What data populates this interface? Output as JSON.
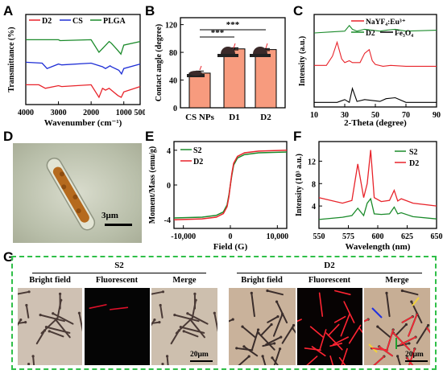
{
  "panel_labels": {
    "A": "A",
    "B": "B",
    "C": "C",
    "D": "D",
    "E": "E",
    "F": "F",
    "G": "G"
  },
  "colors": {
    "D2": "#e8232a",
    "CS": "#1f2fd6",
    "PLGA": "#1a8a2a",
    "S2": "#1a8a2a",
    "NaYF4": "#e8232a",
    "Fe3O4": "#000000",
    "bar": "#f79b7e",
    "dashbox": "#2fbf48"
  },
  "panelA": {
    "ylabel": "Transmittance (%)",
    "xlabel": "Wavenumber (cm⁻¹)",
    "xticks": [
      "4000",
      "3000",
      "2000",
      "1000",
      "500"
    ],
    "legend": [
      "D2",
      "CS",
      "PLGA"
    ]
  },
  "panelB": {
    "ylabel": "Contact angle (degree)",
    "yticks": [
      "0",
      "40",
      "80",
      "120"
    ],
    "sig1": "***",
    "sig2": "***"
  },
  "panelC": {
    "ylabel": "Intensity (a.u.)",
    "xlabel": "2-Theta (degree)",
    "xticks": [
      "10",
      "30",
      "50",
      "70",
      "90"
    ],
    "legend_nayf4": "NaYF₄:Eu³⁺",
    "legend_d2": "D2",
    "legend_fe3o4": "Fe₃O₄"
  },
  "panelD": {
    "scalebar": "3μm"
  },
  "panelE": {
    "ylabel": "Moment/Mass (emu/g)",
    "xlabel": "Field (G)",
    "yticks": [
      "4",
      "0",
      "-4"
    ],
    "xticks": [
      "-10,000",
      "0",
      "10,000"
    ],
    "legend": [
      "S2",
      "D2"
    ]
  },
  "panelF": {
    "ylabel": "Intensity (10³ a.u.)",
    "xlabel": "Wavelength (nm)",
    "yticks": [
      "4",
      "8",
      "12"
    ],
    "xticks": [
      "550",
      "575",
      "600",
      "625",
      "650"
    ],
    "legend": [
      "S2",
      "D2"
    ]
  },
  "panelG": {
    "group_s2": "S2",
    "group_d2": "D2",
    "captions": [
      "Bright field",
      "Fluorescent",
      "Merge",
      "Bright field",
      "Fluorescent",
      "Merge"
    ],
    "scalebar": "20μm"
  },
  "chart_data": [
    {
      "type": "line",
      "title": "",
      "xlabel": "Wavenumber (cm⁻¹)",
      "ylabel": "Transmittance (%)",
      "xlim": [
        4000,
        500
      ],
      "series": [
        {
          "name": "D2",
          "x": [
            4000,
            3600,
            3400,
            3000,
            2900,
            2000,
            1760,
            1650,
            1560,
            1450,
            1380,
            1180,
            1080,
            1000,
            500
          ],
          "y": [
            22,
            22,
            18,
            21,
            20,
            22,
            8,
            18,
            16,
            18,
            16,
            10,
            8,
            14,
            20
          ]
        },
        {
          "name": "CS",
          "x": [
            4000,
            3500,
            3350,
            3000,
            2900,
            2000,
            1650,
            1560,
            1420,
            1380,
            1150,
            1070,
            1000,
            500
          ],
          "y": [
            47,
            46,
            40,
            45,
            44,
            46,
            42,
            40,
            43,
            42,
            38,
            34,
            40,
            45
          ]
        },
        {
          "name": "PLGA",
          "x": [
            4000,
            3000,
            2950,
            2000,
            1760,
            1450,
            1380,
            1180,
            1090,
            1000,
            500
          ],
          "y": [
            72,
            72,
            71,
            72,
            58,
            70,
            68,
            60,
            56,
            66,
            70
          ]
        }
      ]
    },
    {
      "type": "bar",
      "title": "",
      "categories": [
        "CS NPs",
        "D1",
        "D2"
      ],
      "values": [
        50,
        85,
        84
      ],
      "errors": [
        3,
        1.5,
        1.5
      ],
      "ylabel": "Contact angle (degree)",
      "ylim": [
        0,
        130
      ]
    },
    {
      "type": "line",
      "title": "",
      "xlabel": "2-Theta (degree)",
      "ylabel": "Intensity (a.u.)",
      "xlim": [
        10,
        90
      ],
      "series": [
        {
          "name": "D2",
          "x": [
            10,
            20,
            30,
            33,
            35,
            38,
            43,
            53,
            57,
            63,
            70,
            90
          ],
          "y": [
            80,
            81,
            82,
            88,
            84,
            82,
            84,
            82,
            83,
            84,
            82,
            83
          ]
        },
        {
          "name": "NaYF₄:Eu³⁺",
          "x": [
            10,
            18,
            22,
            25,
            28,
            30,
            33,
            35,
            40,
            43,
            46,
            48,
            50,
            55,
            60,
            70,
            90
          ],
          "y": [
            45,
            45,
            55,
            70,
            52,
            48,
            50,
            48,
            48,
            58,
            62,
            50,
            46,
            44,
            45,
            44,
            44
          ]
        },
        {
          "name": "Fe₃O₄",
          "x": [
            10,
            25,
            30,
            33,
            35,
            38,
            43,
            53,
            57,
            63,
            70,
            90
          ],
          "y": [
            5,
            5,
            8,
            5,
            20,
            6,
            8,
            6,
            9,
            10,
            5,
            5
          ]
        }
      ]
    },
    {
      "type": "line",
      "title": "",
      "xlabel": "Field (G)",
      "ylabel": "Moment/Mass (emu/g)",
      "xlim": [
        -12000,
        12000
      ],
      "ylim": [
        -5,
        5
      ],
      "series": [
        {
          "name": "S2",
          "x": [
            -12000,
            -6000,
            -3000,
            -1500,
            -700,
            -300,
            0,
            300,
            700,
            1500,
            3000,
            6000,
            12000
          ],
          "y": [
            -3.8,
            -3.7,
            -3.5,
            -3.1,
            -2.3,
            -1.1,
            0,
            1.1,
            2.3,
            3.1,
            3.5,
            3.7,
            3.8
          ]
        },
        {
          "name": "D2",
          "x": [
            -12000,
            -6000,
            -3000,
            -1500,
            -700,
            -300,
            0,
            300,
            700,
            1500,
            3000,
            6000,
            12000
          ],
          "y": [
            -4.0,
            -3.9,
            -3.7,
            -3.3,
            -2.5,
            -1.3,
            0,
            1.3,
            2.5,
            3.3,
            3.7,
            3.9,
            4.0
          ]
        }
      ]
    },
    {
      "type": "line",
      "title": "",
      "xlabel": "Wavelength (nm)",
      "ylabel": "Intensity (10³ a.u.)",
      "xlim": [
        550,
        650
      ],
      "series": [
        {
          "name": "S2",
          "x": [
            550,
            570,
            578,
            583,
            588,
            591,
            594,
            597,
            603,
            610,
            614,
            617,
            620,
            630,
            650
          ],
          "y": [
            1.6,
            2,
            2.3,
            3.6,
            2.3,
            4.5,
            5.3,
            2.6,
            2.5,
            2.6,
            3.8,
            2.6,
            2.8,
            2.1,
            1.7
          ]
        },
        {
          "name": "D2",
          "x": [
            550,
            570,
            578,
            583,
            588,
            591,
            594,
            597,
            603,
            610,
            614,
            617,
            620,
            630,
            650
          ],
          "y": [
            5.5,
            4.5,
            5,
            11.5,
            5.5,
            8,
            14,
            5.5,
            4.8,
            5,
            6.8,
            4.9,
            5.3,
            4.5,
            4
          ]
        }
      ]
    }
  ]
}
